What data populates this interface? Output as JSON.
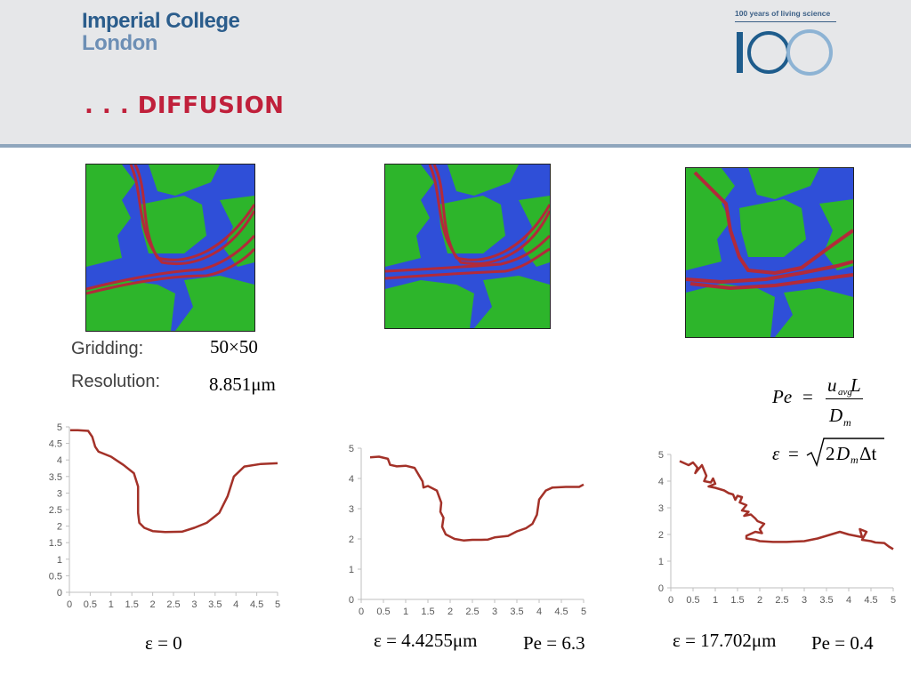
{
  "header": {
    "logo_line1": "Imperial College",
    "logo_line2": "London",
    "badge_caption": "100 years of living science",
    "badge_number": "100",
    "slide_title": ". . . DIFFUSION"
  },
  "labels": {
    "gridding_label": "Gridding:",
    "gridding_value": "50×50",
    "resolution_label": "Resolution:",
    "resolution_value": "8.851μm"
  },
  "formulas": {
    "pe_def": "Pe = u_avg L / D_m",
    "eps_def": "ε = √(2 D_m Δt)",
    "pe_lhs": "Pe",
    "eps_lhs": "ε",
    "u_sym": "u",
    "u_sub": "avg",
    "L_sym": "L",
    "D_sym": "D",
    "D_sub": "m",
    "dt_sym": "Δt",
    "eq": "=",
    "two": "2"
  },
  "captions": {
    "c1_eps": "ε = 0",
    "c2_eps": "ε = 4.4255μm",
    "c2_pe": "Pe = 6.3",
    "c3_eps": "ε = 17.702μm",
    "c3_pe": "Pe = 0.4"
  },
  "colors": {
    "grain": "#2db52b",
    "pore": "#2f4fd8",
    "path": "#b22a3a",
    "line": "#a33128",
    "axis": "#bfbfbf"
  },
  "chart_data": [
    {
      "type": "line",
      "title": "",
      "xlabel": "",
      "ylabel": "",
      "xlim": [
        0,
        5
      ],
      "ylim": [
        0,
        5
      ],
      "xticks": [
        "0",
        "0.5",
        "1",
        "1.5",
        "2",
        "2.5",
        "3",
        "3.5",
        "4",
        "4.5",
        "5"
      ],
      "yticks": [
        "0",
        "0.5",
        "1",
        "1.5",
        "2",
        "2.5",
        "3",
        "3.5",
        "4",
        "4.5",
        "5"
      ],
      "series": [
        {
          "x": [
            0.02,
            0.2,
            0.45,
            0.55,
            0.62,
            0.7,
            1.0,
            1.3,
            1.55,
            1.65,
            1.65,
            1.68,
            1.8,
            2.0,
            2.3,
            2.7,
            3.0,
            3.3,
            3.6,
            3.8,
            3.95,
            4.2,
            4.6,
            5.0
          ],
          "y": [
            4.9,
            4.9,
            4.88,
            4.7,
            4.4,
            4.25,
            4.1,
            3.85,
            3.6,
            3.2,
            2.4,
            2.1,
            1.95,
            1.85,
            1.82,
            1.83,
            1.95,
            2.1,
            2.4,
            2.9,
            3.5,
            3.8,
            3.88,
            3.9
          ]
        }
      ]
    },
    {
      "type": "line",
      "title": "",
      "xlabel": "",
      "ylabel": "",
      "xlim": [
        0,
        5
      ],
      "ylim": [
        0,
        5
      ],
      "xticks": [
        "0",
        "0.5",
        "1",
        "1.5",
        "2",
        "2.5",
        "3",
        "3.5",
        "4",
        "4.5",
        "5"
      ],
      "yticks": [
        "0",
        "1",
        "2",
        "3",
        "4",
        "5"
      ],
      "series": [
        {
          "x": [
            0.2,
            0.4,
            0.6,
            0.65,
            0.8,
            1.0,
            1.2,
            1.3,
            1.38,
            1.4,
            1.5,
            1.7,
            1.8,
            1.78,
            1.85,
            1.82,
            1.9,
            2.1,
            2.3,
            2.5,
            2.7,
            2.85,
            3.0,
            3.3,
            3.5,
            3.7,
            3.85,
            3.95,
            4.0,
            4.15,
            4.3,
            4.6,
            4.9,
            5.0
          ],
          "y": [
            4.7,
            4.72,
            4.65,
            4.45,
            4.4,
            4.42,
            4.35,
            4.1,
            3.9,
            3.7,
            3.75,
            3.6,
            3.2,
            2.9,
            2.7,
            2.4,
            2.15,
            2.0,
            1.95,
            1.97,
            1.97,
            1.98,
            2.05,
            2.1,
            2.25,
            2.35,
            2.5,
            2.8,
            3.3,
            3.6,
            3.7,
            3.72,
            3.72,
            3.8
          ]
        }
      ]
    },
    {
      "type": "line",
      "title": "",
      "xlabel": "",
      "ylabel": "",
      "xlim": [
        0,
        5
      ],
      "ylim": [
        0,
        5
      ],
      "xticks": [
        "0",
        "0.5",
        "1",
        "1.5",
        "2",
        "2.5",
        "3",
        "3.5",
        "4",
        "4.5",
        "5"
      ],
      "yticks": [
        "0",
        "1",
        "2",
        "3",
        "4",
        "5"
      ],
      "series": [
        {
          "x": [
            0.2,
            0.4,
            0.5,
            0.6,
            0.55,
            0.7,
            0.8,
            0.75,
            0.9,
            0.95,
            1.0,
            0.85,
            1.0,
            1.1,
            1.2,
            1.3,
            1.4,
            1.45,
            1.5,
            1.6,
            1.55,
            1.7,
            1.6,
            1.75,
            1.65,
            1.8,
            1.9,
            1.95,
            2.1,
            2.0,
            2.05,
            1.9,
            1.7,
            1.7,
            1.9,
            2.0,
            2.3,
            2.6,
            3.0,
            3.3,
            3.6,
            3.8,
            4.0,
            4.15,
            4.3,
            4.25,
            4.4,
            4.3,
            4.5,
            4.6,
            4.8,
            4.9,
            5.0
          ],
          "y": [
            4.75,
            4.6,
            4.7,
            4.5,
            4.3,
            4.6,
            4.2,
            4.0,
            3.95,
            4.1,
            3.9,
            3.8,
            3.75,
            3.7,
            3.65,
            3.55,
            3.5,
            3.3,
            3.45,
            3.4,
            3.2,
            3.1,
            2.9,
            2.85,
            2.7,
            2.75,
            2.6,
            2.5,
            2.4,
            2.2,
            2.05,
            2.1,
            1.95,
            1.85,
            1.8,
            1.75,
            1.72,
            1.72,
            1.75,
            1.85,
            2.0,
            2.1,
            2.0,
            1.95,
            1.9,
            2.2,
            2.1,
            1.8,
            1.75,
            1.7,
            1.68,
            1.55,
            1.45
          ]
        }
      ]
    }
  ]
}
